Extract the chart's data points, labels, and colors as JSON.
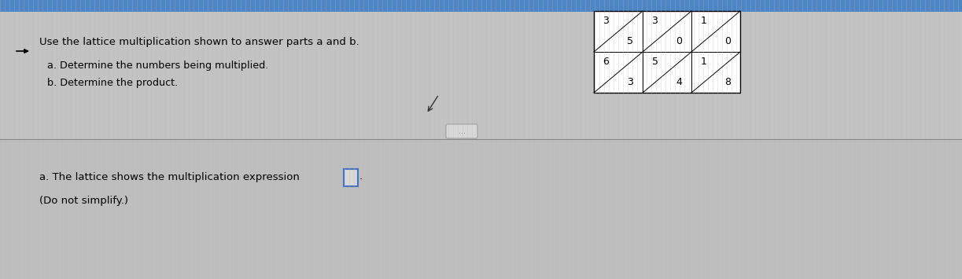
{
  "bg_color_top": "#4a86c8",
  "bg_color_main": "#cccccc",
  "stripe_color": "#c8c8c8",
  "title_text": "Use the lattice multiplication shown to answer parts a and b.",
  "sub_a": "a. Determine the numbers being multiplied.",
  "sub_b": "b. Determine the product.",
  "answer_text_a": "a. The lattice shows the multiplication expression",
  "answer_text_b": "(Do not simplify.)",
  "lattice": {
    "top_row": [
      {
        "top_left": "3",
        "bot_right": "5"
      },
      {
        "top_left": "3",
        "bot_right": "0"
      },
      {
        "top_left": "1",
        "bot_right": "0"
      }
    ],
    "bot_row": [
      {
        "top_left": "6",
        "bot_right": "3"
      },
      {
        "top_left": "5",
        "bot_right": "4"
      },
      {
        "top_left": "1",
        "bot_right": "8"
      }
    ]
  }
}
